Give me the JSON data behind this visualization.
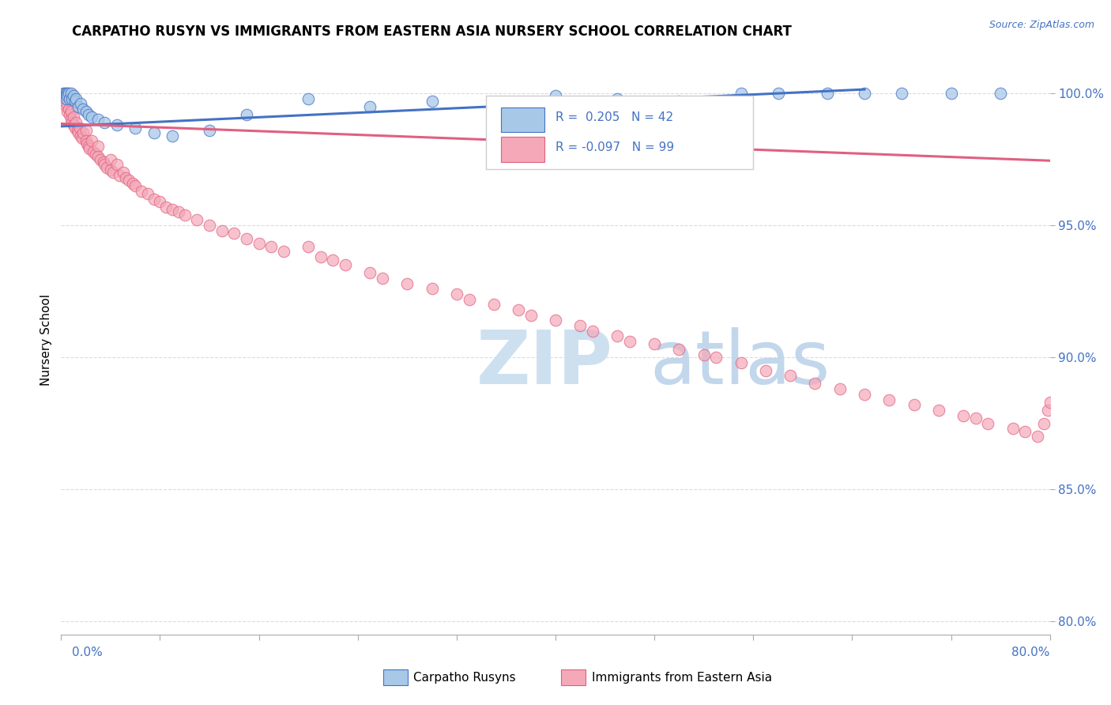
{
  "title": "CARPATHO RUSYN VS IMMIGRANTS FROM EASTERN ASIA NURSERY SCHOOL CORRELATION CHART",
  "source_text": "Source: ZipAtlas.com",
  "ylabel": "Nursery School",
  "y_ticks": [
    80.0,
    85.0,
    90.0,
    95.0,
    100.0
  ],
  "x_lim": [
    0.0,
    80.0
  ],
  "y_lim": [
    79.5,
    101.8
  ],
  "legend_blue_label": "Carpatho Rusyns",
  "legend_pink_label": "Immigrants from Eastern Asia",
  "r_blue": 0.205,
  "n_blue": 42,
  "r_pink": -0.097,
  "n_pink": 99,
  "blue_color": "#a8c8e8",
  "pink_color": "#f4a8b8",
  "blue_line_color": "#4472c4",
  "pink_line_color": "#e06080",
  "blue_edge_color": "#4472c4",
  "pink_edge_color": "#e06080",
  "blue_trend_x": [
    0.0,
    65.0
  ],
  "blue_trend_y": [
    98.75,
    100.15
  ],
  "pink_trend_x": [
    0.0,
    80.0
  ],
  "pink_trend_y": [
    98.85,
    97.45
  ],
  "blue_scatter_x": [
    0.2,
    0.3,
    0.3,
    0.4,
    0.4,
    0.5,
    0.5,
    0.6,
    0.7,
    0.8,
    0.9,
    1.0,
    1.1,
    1.2,
    1.4,
    1.6,
    1.8,
    2.0,
    2.2,
    2.5,
    3.0,
    3.5,
    4.5,
    6.0,
    7.5,
    9.0,
    12.0,
    15.0,
    20.0,
    25.0,
    30.0,
    35.0,
    40.0,
    45.0,
    50.0,
    55.0,
    58.0,
    62.0,
    65.0,
    68.0,
    72.0,
    76.0
  ],
  "blue_scatter_y": [
    100.0,
    100.0,
    99.9,
    100.0,
    99.8,
    100.0,
    99.9,
    100.0,
    99.8,
    100.0,
    99.8,
    99.9,
    99.7,
    99.8,
    99.5,
    99.6,
    99.4,
    99.3,
    99.2,
    99.1,
    99.0,
    98.9,
    98.8,
    98.7,
    98.5,
    98.4,
    98.6,
    99.2,
    99.8,
    99.5,
    99.7,
    99.6,
    99.9,
    99.8,
    99.7,
    100.0,
    100.0,
    100.0,
    100.0,
    100.0,
    100.0,
    100.0
  ],
  "pink_scatter_x": [
    0.3,
    0.4,
    0.5,
    0.5,
    0.6,
    0.7,
    0.8,
    0.8,
    0.9,
    1.0,
    1.0,
    1.1,
    1.2,
    1.3,
    1.4,
    1.5,
    1.6,
    1.7,
    1.8,
    2.0,
    2.0,
    2.1,
    2.2,
    2.3,
    2.5,
    2.6,
    2.8,
    3.0,
    3.0,
    3.2,
    3.4,
    3.5,
    3.7,
    4.0,
    4.0,
    4.2,
    4.5,
    4.7,
    5.0,
    5.2,
    5.5,
    5.8,
    6.0,
    6.5,
    7.0,
    7.5,
    8.0,
    8.5,
    9.0,
    9.5,
    10.0,
    11.0,
    12.0,
    13.0,
    14.0,
    15.0,
    16.0,
    17.0,
    18.0,
    20.0,
    21.0,
    22.0,
    23.0,
    25.0,
    26.0,
    28.0,
    30.0,
    32.0,
    33.0,
    35.0,
    37.0,
    38.0,
    40.0,
    42.0,
    43.0,
    45.0,
    46.0,
    48.0,
    50.0,
    52.0,
    53.0,
    55.0,
    57.0,
    59.0,
    61.0,
    63.0,
    65.0,
    67.0,
    69.0,
    71.0,
    73.0,
    74.0,
    75.0,
    77.0,
    78.0,
    79.0,
    79.5,
    79.8,
    80.0
  ],
  "pink_scatter_y": [
    99.8,
    99.5,
    99.6,
    99.3,
    99.4,
    99.2,
    99.3,
    99.0,
    98.9,
    99.1,
    98.8,
    98.7,
    98.9,
    98.6,
    98.5,
    98.7,
    98.4,
    98.3,
    98.5,
    98.6,
    98.2,
    98.1,
    98.0,
    97.9,
    98.2,
    97.8,
    97.7,
    98.0,
    97.6,
    97.5,
    97.4,
    97.3,
    97.2,
    97.5,
    97.1,
    97.0,
    97.3,
    96.9,
    97.0,
    96.8,
    96.7,
    96.6,
    96.5,
    96.3,
    96.2,
    96.0,
    95.9,
    95.7,
    95.6,
    95.5,
    95.4,
    95.2,
    95.0,
    94.8,
    94.7,
    94.5,
    94.3,
    94.2,
    94.0,
    94.2,
    93.8,
    93.7,
    93.5,
    93.2,
    93.0,
    92.8,
    92.6,
    92.4,
    92.2,
    92.0,
    91.8,
    91.6,
    91.4,
    91.2,
    91.0,
    90.8,
    90.6,
    90.5,
    90.3,
    90.1,
    90.0,
    89.8,
    89.5,
    89.3,
    89.0,
    88.8,
    88.6,
    88.4,
    88.2,
    88.0,
    87.8,
    87.7,
    87.5,
    87.3,
    87.2,
    87.0,
    87.5,
    88.0,
    88.3
  ]
}
